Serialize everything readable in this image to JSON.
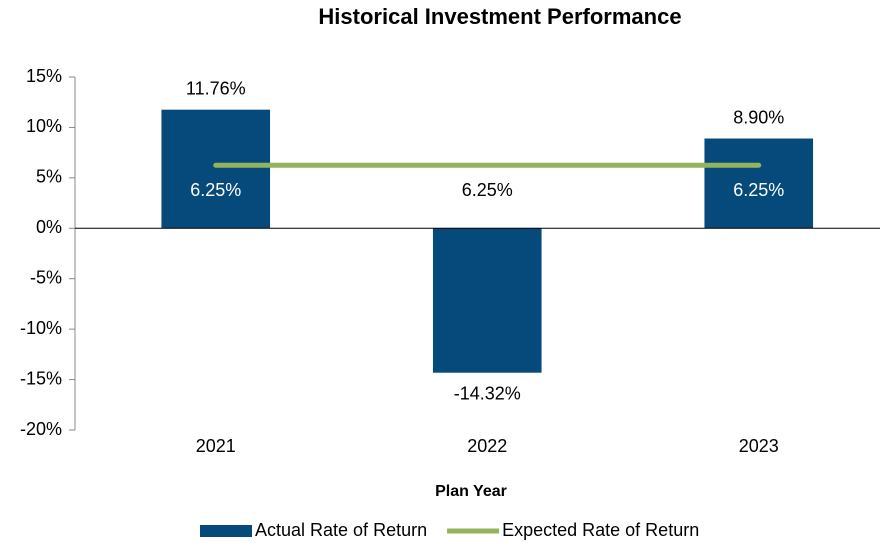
{
  "chart_data": {
    "type": "bar",
    "title": "Historical Investment Performance",
    "x_label": "Plan Year",
    "categories": [
      "2021",
      "2022",
      "2023"
    ],
    "series": [
      {
        "name": "Actual Rate of Return",
        "type": "bar",
        "color": "#054a7b",
        "values": [
          11.76,
          -14.32,
          8.9
        ],
        "value_labels": [
          "11.76%",
          "-14.32%",
          "8.90%"
        ]
      },
      {
        "name": "Expected Rate of Return",
        "type": "line",
        "color": "#93b35d",
        "values": [
          6.25,
          6.25,
          6.25
        ],
        "value_labels": [
          "6.25%",
          "6.25%",
          "6.25%"
        ]
      }
    ],
    "ylim": [
      -20,
      15
    ],
    "yticks": [
      {
        "value": -20,
        "label": "-20%"
      },
      {
        "value": -15,
        "label": "-15%"
      },
      {
        "value": -10,
        "label": "-10%"
      },
      {
        "value": -5,
        "label": "-5%"
      },
      {
        "value": 0,
        "label": "0%"
      },
      {
        "value": 5,
        "label": "5%"
      },
      {
        "value": 10,
        "label": "10%"
      },
      {
        "value": 15,
        "label": "15%"
      }
    ],
    "legend": "bottom"
  }
}
